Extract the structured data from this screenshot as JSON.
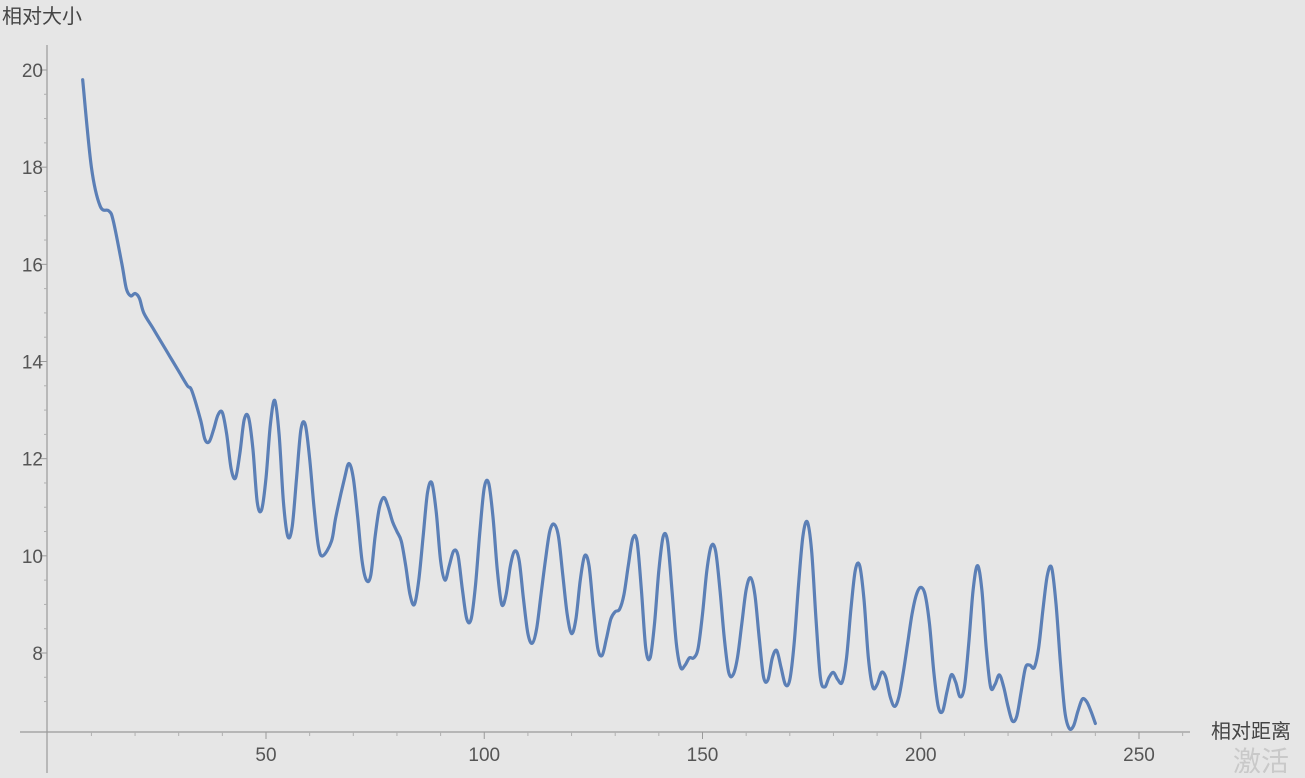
{
  "chart_data": {
    "type": "line",
    "title": "",
    "xlabel": "相对距离",
    "ylabel": "相对大小",
    "xlim": [
      0,
      262
    ],
    "ylim": [
      6.4,
      20.4
    ],
    "x_ticks": [
      50,
      100,
      150,
      200,
      250
    ],
    "y_ticks": [
      8,
      10,
      12,
      14,
      16,
      18,
      20
    ],
    "grid": false,
    "legend": "none",
    "colors": {
      "line": "#5b7fb6",
      "background": "#e6e6e6",
      "axis": "#9a9a9a"
    },
    "series": [
      {
        "values": [
          [
            8,
            19.8
          ],
          [
            10,
            18.0
          ],
          [
            12,
            17.2
          ],
          [
            14,
            17.1
          ],
          [
            15,
            16.9
          ],
          [
            17,
            16.0
          ],
          [
            18,
            15.5
          ],
          [
            19,
            15.35
          ],
          [
            20,
            15.4
          ],
          [
            21,
            15.3
          ],
          [
            22,
            15.0
          ],
          [
            24,
            14.7
          ],
          [
            26,
            14.4
          ],
          [
            28,
            14.1
          ],
          [
            30,
            13.8
          ],
          [
            32,
            13.5
          ],
          [
            33,
            13.4
          ],
          [
            35,
            12.8
          ],
          [
            36,
            12.4
          ],
          [
            37,
            12.35
          ],
          [
            38,
            12.6
          ],
          [
            39,
            12.9
          ],
          [
            40,
            12.95
          ],
          [
            41,
            12.5
          ],
          [
            42,
            11.8
          ],
          [
            43,
            11.6
          ],
          [
            44,
            12.1
          ],
          [
            45,
            12.8
          ],
          [
            46,
            12.85
          ],
          [
            47,
            12.2
          ],
          [
            48,
            11.1
          ],
          [
            49,
            10.95
          ],
          [
            50,
            11.6
          ],
          [
            51,
            12.7
          ],
          [
            52,
            13.2
          ],
          [
            53,
            12.5
          ],
          [
            54,
            11.1
          ],
          [
            55,
            10.4
          ],
          [
            56,
            10.6
          ],
          [
            57,
            11.6
          ],
          [
            58,
            12.6
          ],
          [
            59,
            12.7
          ],
          [
            60,
            12.0
          ],
          [
            61,
            11.0
          ],
          [
            62,
            10.2
          ],
          [
            63,
            10.0
          ],
          [
            65,
            10.3
          ],
          [
            66,
            10.8
          ],
          [
            68,
            11.6
          ],
          [
            69,
            11.9
          ],
          [
            70,
            11.6
          ],
          [
            71,
            10.8
          ],
          [
            72,
            9.9
          ],
          [
            73,
            9.5
          ],
          [
            74,
            9.6
          ],
          [
            75,
            10.4
          ],
          [
            76,
            11.0
          ],
          [
            77,
            11.2
          ],
          [
            78,
            11.0
          ],
          [
            79,
            10.7
          ],
          [
            80,
            10.5
          ],
          [
            81,
            10.3
          ],
          [
            82,
            9.8
          ],
          [
            83,
            9.2
          ],
          [
            84,
            9.0
          ],
          [
            85,
            9.5
          ],
          [
            86,
            10.4
          ],
          [
            87,
            11.3
          ],
          [
            88,
            11.5
          ],
          [
            89,
            10.9
          ],
          [
            90,
            9.9
          ],
          [
            91,
            9.5
          ],
          [
            92,
            9.8
          ],
          [
            93,
            10.1
          ],
          [
            94,
            10.0
          ],
          [
            95,
            9.3
          ],
          [
            96,
            8.7
          ],
          [
            97,
            8.7
          ],
          [
            98,
            9.4
          ],
          [
            99,
            10.5
          ],
          [
            100,
            11.4
          ],
          [
            101,
            11.5
          ],
          [
            102,
            10.8
          ],
          [
            103,
            9.7
          ],
          [
            104,
            9.0
          ],
          [
            105,
            9.2
          ],
          [
            106,
            9.8
          ],
          [
            107,
            10.1
          ],
          [
            108,
            9.9
          ],
          [
            109,
            9.1
          ],
          [
            110,
            8.4
          ],
          [
            111,
            8.2
          ],
          [
            112,
            8.5
          ],
          [
            113,
            9.2
          ],
          [
            114,
            9.9
          ],
          [
            115,
            10.5
          ],
          [
            116,
            10.65
          ],
          [
            117,
            10.4
          ],
          [
            118,
            9.6
          ],
          [
            119,
            8.8
          ],
          [
            120,
            8.4
          ],
          [
            121,
            8.7
          ],
          [
            122,
            9.5
          ],
          [
            123,
            10.0
          ],
          [
            124,
            9.8
          ],
          [
            125,
            8.9
          ],
          [
            126,
            8.1
          ],
          [
            127,
            7.95
          ],
          [
            128,
            8.3
          ],
          [
            129,
            8.7
          ],
          [
            130,
            8.85
          ],
          [
            131,
            8.9
          ],
          [
            132,
            9.2
          ],
          [
            133,
            9.8
          ],
          [
            134,
            10.35
          ],
          [
            135,
            10.3
          ],
          [
            136,
            9.3
          ],
          [
            137,
            8.1
          ],
          [
            138,
            7.9
          ],
          [
            139,
            8.6
          ],
          [
            140,
            9.7
          ],
          [
            141,
            10.4
          ],
          [
            142,
            10.3
          ],
          [
            143,
            9.3
          ],
          [
            144,
            8.2
          ],
          [
            145,
            7.7
          ],
          [
            146,
            7.75
          ],
          [
            147,
            7.9
          ],
          [
            148,
            7.9
          ],
          [
            149,
            8.1
          ],
          [
            150,
            8.8
          ],
          [
            151,
            9.7
          ],
          [
            152,
            10.2
          ],
          [
            153,
            10.1
          ],
          [
            154,
            9.3
          ],
          [
            155,
            8.3
          ],
          [
            156,
            7.6
          ],
          [
            157,
            7.55
          ],
          [
            158,
            7.9
          ],
          [
            159,
            8.6
          ],
          [
            160,
            9.3
          ],
          [
            161,
            9.55
          ],
          [
            162,
            9.2
          ],
          [
            163,
            8.3
          ],
          [
            164,
            7.5
          ],
          [
            165,
            7.45
          ],
          [
            166,
            7.9
          ],
          [
            167,
            8.05
          ],
          [
            168,
            7.7
          ],
          [
            169,
            7.35
          ],
          [
            170,
            7.45
          ],
          [
            171,
            8.2
          ],
          [
            172,
            9.4
          ],
          [
            173,
            10.4
          ],
          [
            174,
            10.7
          ],
          [
            175,
            10.1
          ],
          [
            176,
            8.7
          ],
          [
            177,
            7.5
          ],
          [
            178,
            7.3
          ],
          [
            179,
            7.5
          ],
          [
            180,
            7.6
          ],
          [
            181,
            7.45
          ],
          [
            182,
            7.4
          ],
          [
            183,
            7.9
          ],
          [
            184,
            8.9
          ],
          [
            185,
            9.7
          ],
          [
            186,
            9.8
          ],
          [
            187,
            9.1
          ],
          [
            188,
            7.9
          ],
          [
            189,
            7.3
          ],
          [
            190,
            7.35
          ],
          [
            191,
            7.6
          ],
          [
            192,
            7.5
          ],
          [
            193,
            7.1
          ],
          [
            194,
            6.9
          ],
          [
            195,
            7.1
          ],
          [
            196,
            7.6
          ],
          [
            197,
            8.2
          ],
          [
            198,
            8.8
          ],
          [
            199,
            9.2
          ],
          [
            200,
            9.35
          ],
          [
            201,
            9.2
          ],
          [
            202,
            8.6
          ],
          [
            203,
            7.6
          ],
          [
            204,
            6.9
          ],
          [
            205,
            6.8
          ],
          [
            206,
            7.2
          ],
          [
            207,
            7.55
          ],
          [
            208,
            7.4
          ],
          [
            209,
            7.1
          ],
          [
            210,
            7.3
          ],
          [
            211,
            8.2
          ],
          [
            212,
            9.3
          ],
          [
            213,
            9.8
          ],
          [
            214,
            9.3
          ],
          [
            215,
            8.1
          ],
          [
            216,
            7.3
          ],
          [
            217,
            7.35
          ],
          [
            218,
            7.55
          ],
          [
            219,
            7.3
          ],
          [
            220,
            6.9
          ],
          [
            221,
            6.6
          ],
          [
            222,
            6.7
          ],
          [
            223,
            7.2
          ],
          [
            224,
            7.7
          ],
          [
            225,
            7.75
          ],
          [
            226,
            7.7
          ],
          [
            227,
            8.1
          ],
          [
            228,
            8.9
          ],
          [
            229,
            9.6
          ],
          [
            230,
            9.75
          ],
          [
            231,
            9.0
          ],
          [
            232,
            7.8
          ],
          [
            233,
            6.8
          ],
          [
            234,
            6.45
          ],
          [
            235,
            6.5
          ],
          [
            236,
            6.8
          ],
          [
            237,
            7.05
          ],
          [
            238,
            7.0
          ],
          [
            239,
            6.8
          ],
          [
            240,
            6.55
          ]
        ]
      }
    ]
  },
  "watermark": "激活"
}
